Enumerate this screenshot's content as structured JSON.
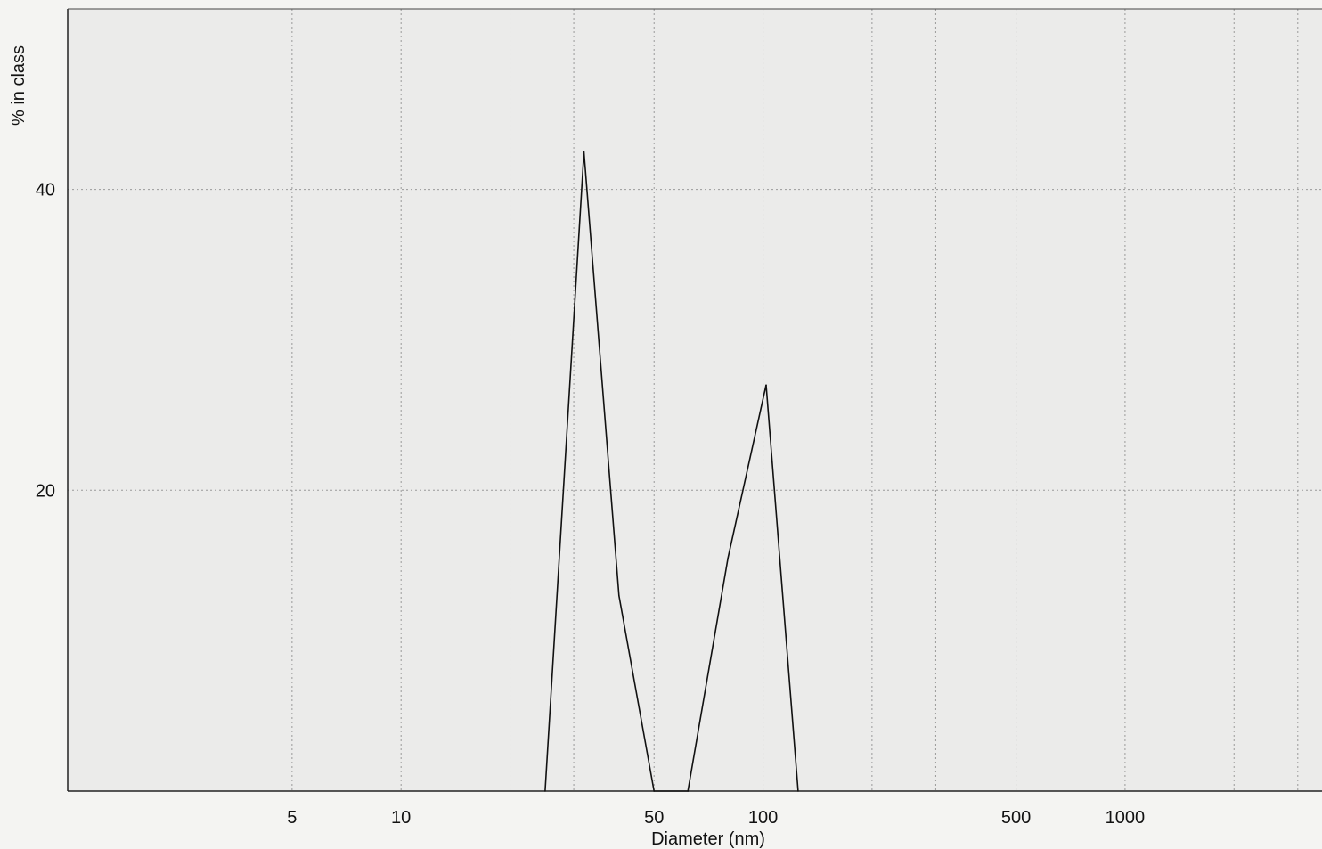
{
  "chart_data": {
    "type": "line",
    "xlabel": "Diameter (nm)",
    "ylabel": "% in class",
    "xscale": "log",
    "xlim": [
      1.2,
      3500
    ],
    "ylim": [
      0,
      52
    ],
    "x_ticks": [
      5,
      10,
      50,
      100,
      500,
      1000
    ],
    "x_tick_labels": [
      "5",
      "10",
      "50",
      "100",
      "500",
      "1000"
    ],
    "x_minor_grid": [
      20,
      30,
      200,
      300,
      2000,
      3000
    ],
    "y_ticks": [
      20,
      40
    ],
    "y_tick_labels": [
      "20",
      "40"
    ],
    "grid": true,
    "series": [
      {
        "color": "#111111",
        "x": [
          25,
          32,
          40,
          50,
          62,
          80,
          102,
          125
        ],
        "y": [
          0,
          42.5,
          13,
          0,
          0,
          15.5,
          27,
          0
        ]
      }
    ]
  }
}
